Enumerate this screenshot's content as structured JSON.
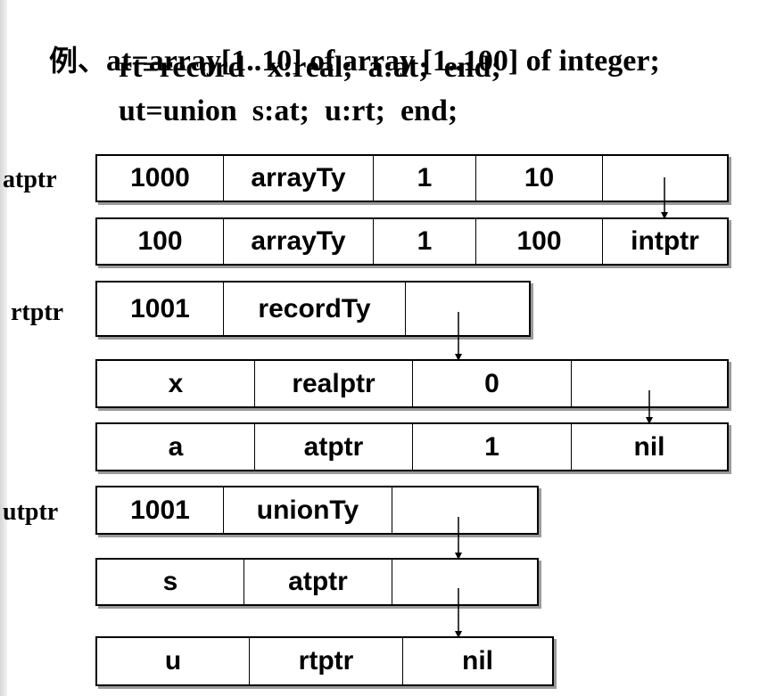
{
  "title": {
    "prefix": "例、",
    "line1": "at=array[1..10] of array [1..100] of integer;",
    "line2": "rt=record   x:real;  a:at;  end;",
    "line3": "ut=union  s:at;  u:rt;  end;"
  },
  "labels": {
    "atptr": "atptr",
    "rtptr": "rtptr",
    "utptr": "utptr"
  },
  "rows": [
    [
      "1000",
      "arrayTy",
      "1",
      "10",
      ""
    ],
    [
      "100",
      "arrayTy",
      "1",
      "100",
      "intptr"
    ],
    [
      "1001",
      "recordTy",
      ""
    ],
    [
      "x",
      "realptr",
      "0",
      ""
    ],
    [
      "a",
      "atptr",
      "1",
      "nil"
    ],
    [
      "1001",
      "unionTy",
      ""
    ],
    [
      "s",
      "atptr",
      ""
    ],
    [
      "u",
      "rtptr",
      "nil"
    ]
  ]
}
